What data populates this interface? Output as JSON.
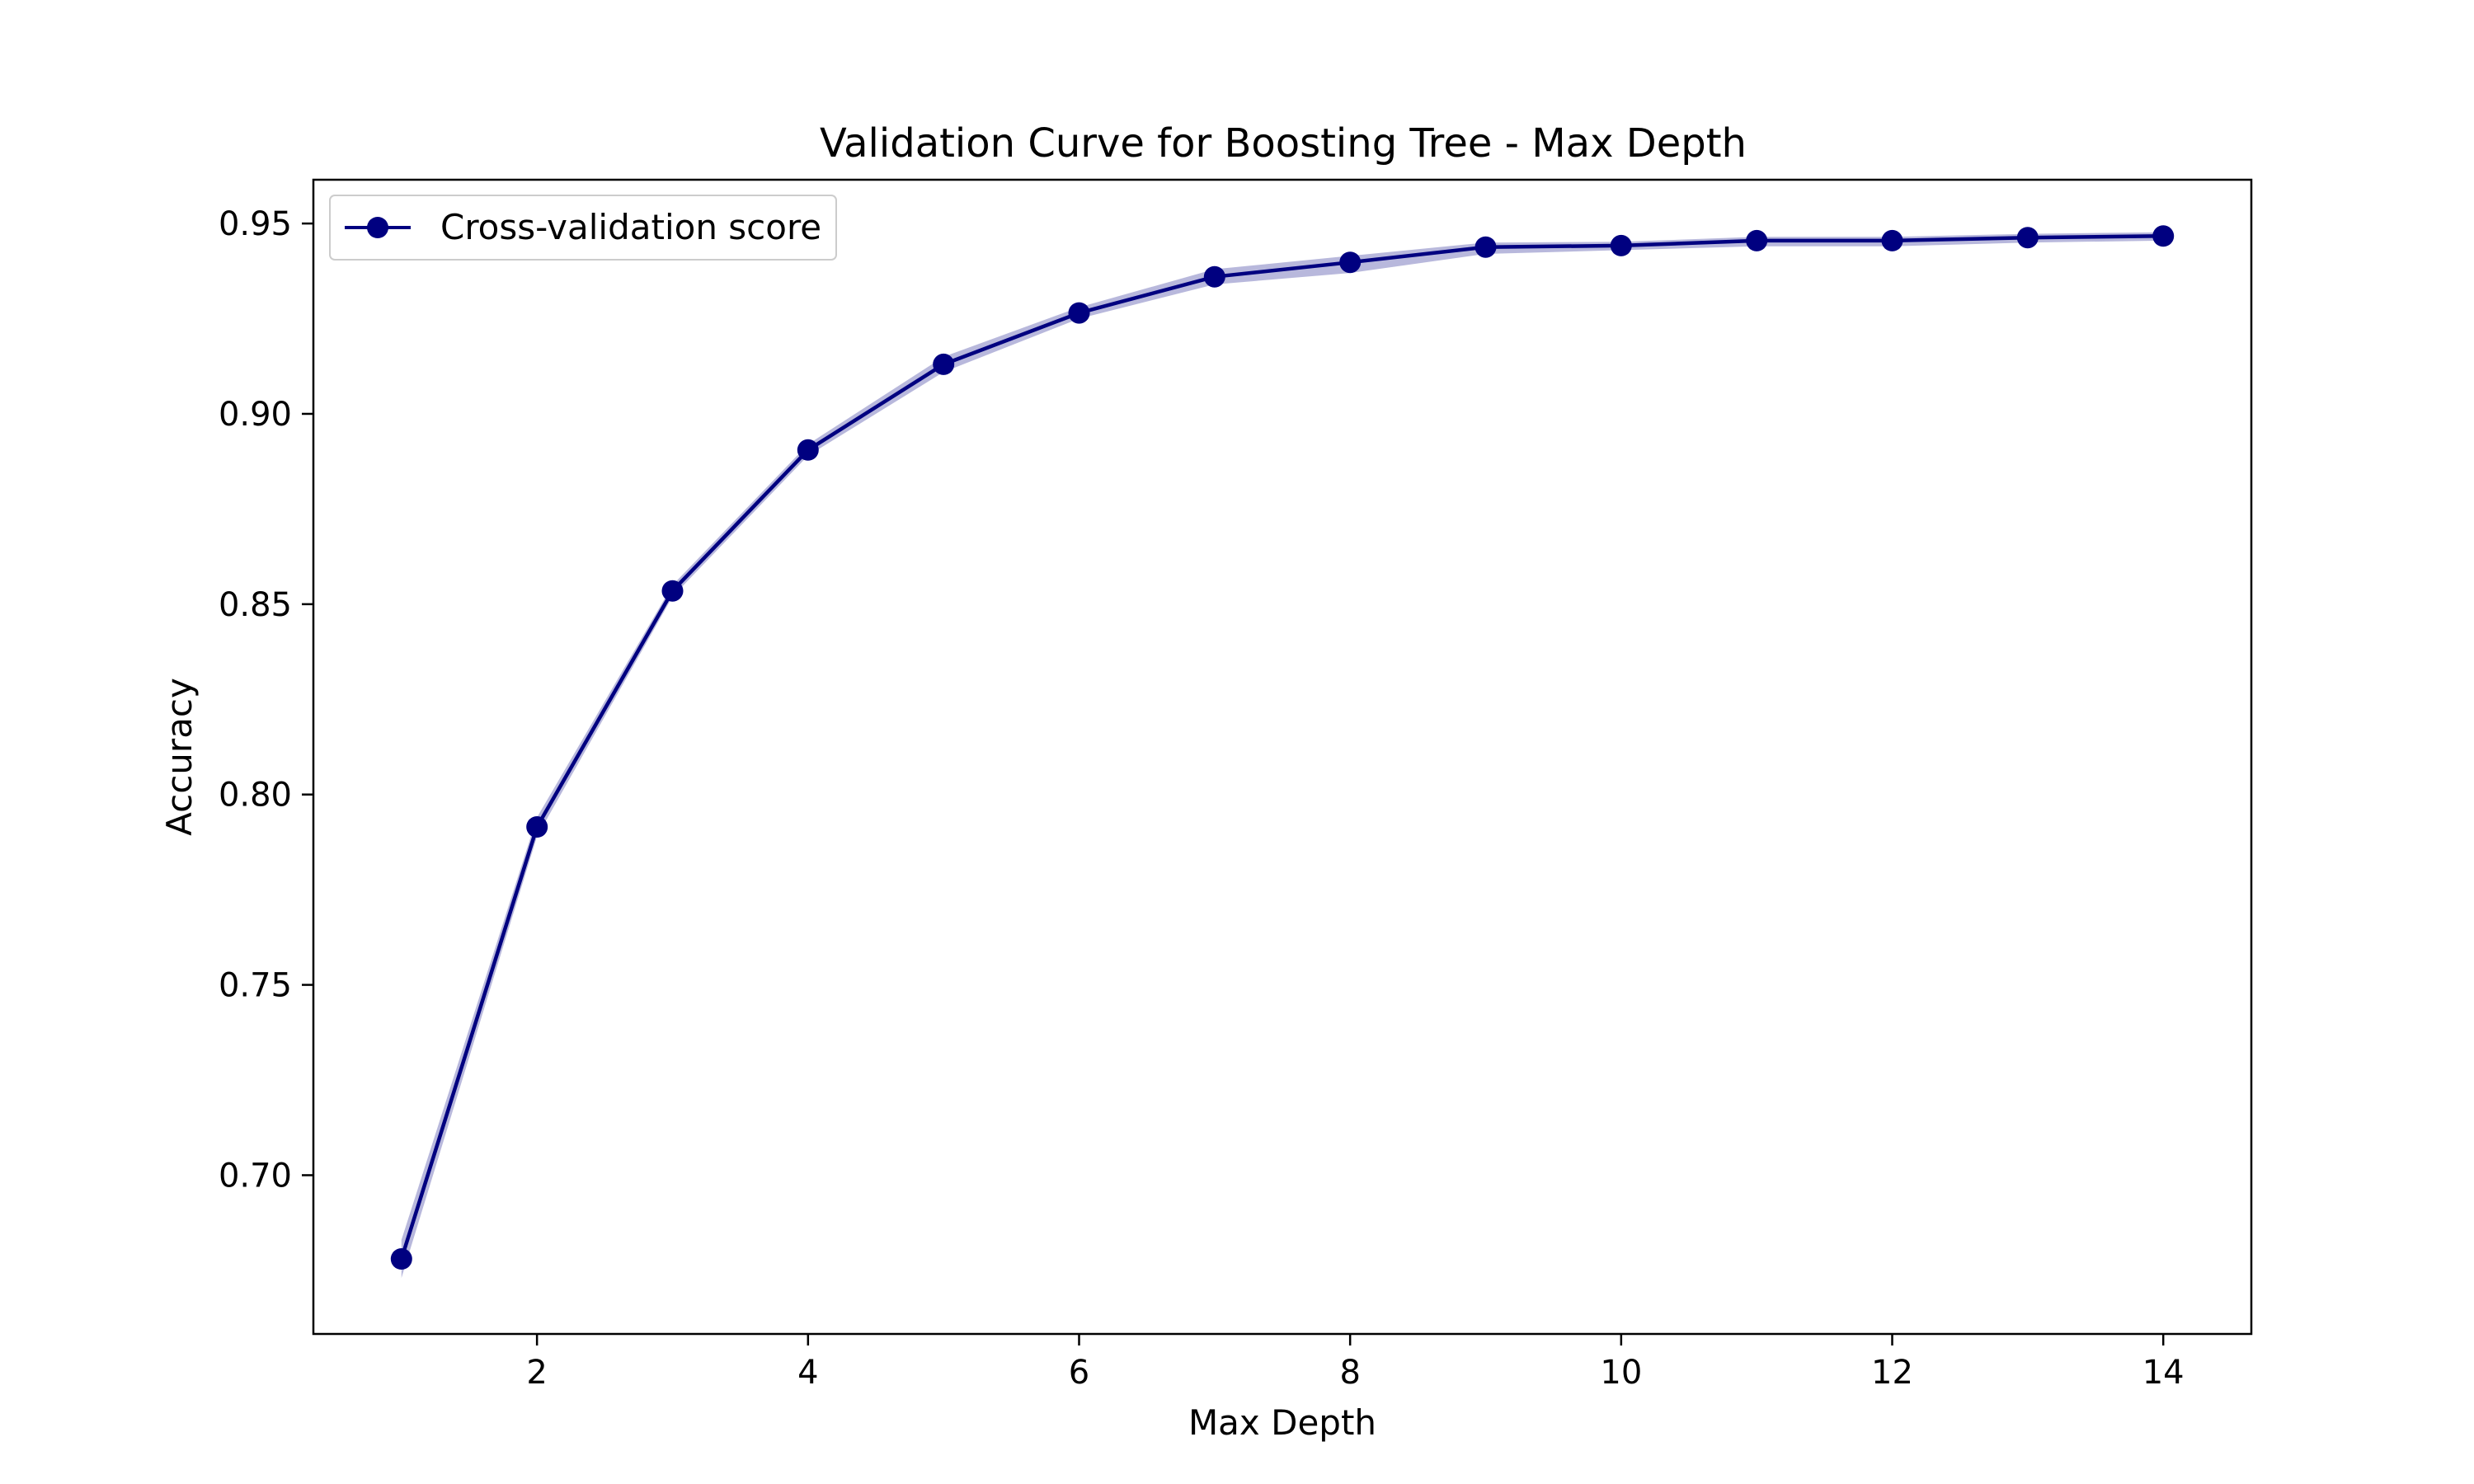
{
  "chart_data": {
    "type": "line",
    "title": "Validation Curve for Boosting Tree - Max Depth",
    "xlabel": "Max Depth",
    "ylabel": "Accuracy",
    "xlim": [
      0.35,
      14.65
    ],
    "ylim": [
      0.6583,
      0.9615
    ],
    "x_ticks": [
      2,
      4,
      6,
      8,
      10,
      12,
      14
    ],
    "x_tick_labels": [
      "2",
      "4",
      "6",
      "8",
      "10",
      "12",
      "14"
    ],
    "y_ticks": [
      0.7,
      0.75,
      0.8,
      0.85,
      0.9,
      0.95
    ],
    "y_tick_labels": [
      "0.70",
      "0.75",
      "0.80",
      "0.85",
      "0.90",
      "0.95"
    ],
    "grid": false,
    "legend_position": "top-left",
    "series": [
      {
        "name": "Cross-validation score",
        "color": "#000080",
        "band_color": "#000080",
        "marker": "circle",
        "x": [
          1,
          2,
          3,
          4,
          5,
          6,
          7,
          8,
          9,
          10,
          11,
          12,
          13,
          14
        ],
        "y": [
          0.678,
          0.7915,
          0.8535,
          0.8905,
          0.913,
          0.9265,
          0.936,
          0.9398,
          0.9438,
          0.9442,
          0.9455,
          0.9455,
          0.9463,
          0.9467
        ],
        "y_lower": [
          0.673,
          0.789,
          0.852,
          0.889,
          0.911,
          0.925,
          0.934,
          0.937,
          0.942,
          0.943,
          0.944,
          0.944,
          0.945,
          0.9455
        ],
        "y_upper": [
          0.683,
          0.794,
          0.855,
          0.892,
          0.915,
          0.928,
          0.938,
          0.9415,
          0.945,
          0.9452,
          0.9465,
          0.9465,
          0.9473,
          0.9477
        ]
      }
    ]
  }
}
